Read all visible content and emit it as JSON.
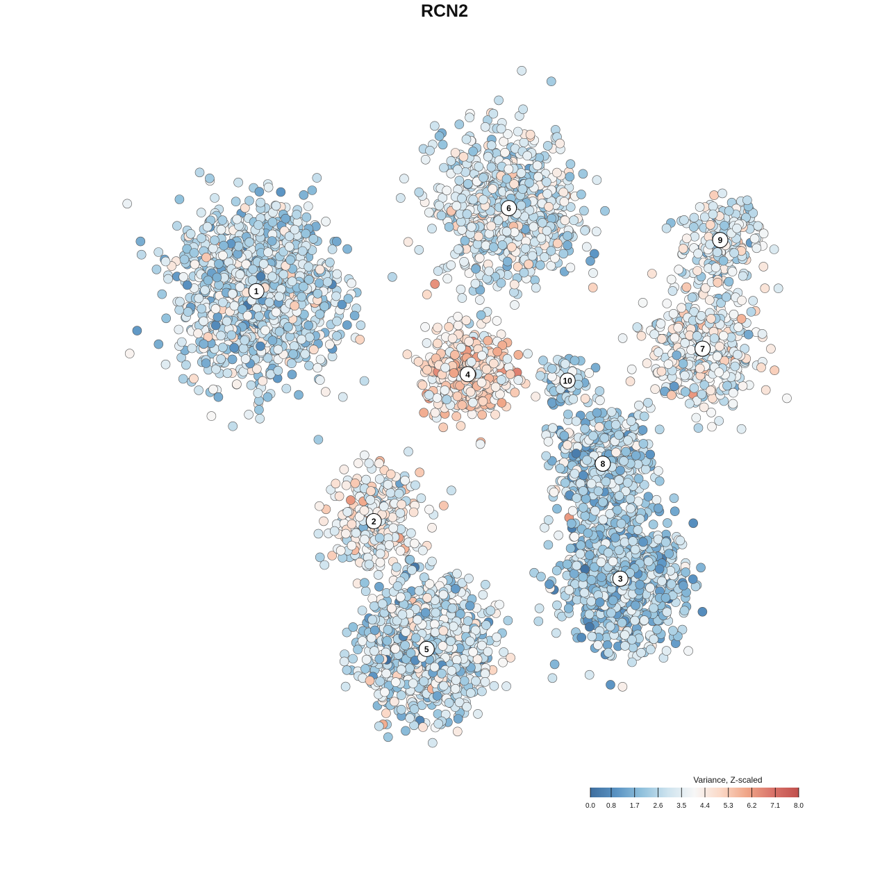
{
  "chart_data": {
    "type": "scatter",
    "title": "RCN2",
    "subtitle": "",
    "xlabel": "",
    "ylabel": "",
    "grid": false,
    "axes_visible": false,
    "color_scale": {
      "title": "Variance, Z-scaled",
      "min": 0.0,
      "max": 8.0,
      "ticks": [
        "0.0",
        "0.8",
        "1.7",
        "2.6",
        "3.5",
        "4.4",
        "5.3",
        "6.2",
        "7.1",
        "8.0"
      ],
      "colors": [
        "#3f6f9f",
        "#5a93c3",
        "#92c2dd",
        "#cfe4ef",
        "#f7f7f7",
        "#fbd9c7",
        "#f0a688",
        "#d9736a",
        "#c0504d"
      ],
      "placement": "bottom-right"
    },
    "clusters": [
      {
        "label": "1",
        "x": 0.2,
        "y": 0.74,
        "mean_value": 2.9,
        "spread": 0.13,
        "n": 1300
      },
      {
        "label": "2",
        "x": 0.4,
        "y": 0.38,
        "mean_value": 3.8,
        "spread": 0.08,
        "n": 300
      },
      {
        "label": "3",
        "x": 0.82,
        "y": 0.29,
        "mean_value": 2.4,
        "spread": 0.1,
        "n": 900
      },
      {
        "label": "4",
        "x": 0.56,
        "y": 0.61,
        "mean_value": 4.6,
        "spread": 0.07,
        "n": 450
      },
      {
        "label": "5",
        "x": 0.49,
        "y": 0.18,
        "mean_value": 3.0,
        "spread": 0.1,
        "n": 1100
      },
      {
        "label": "6",
        "x": 0.63,
        "y": 0.87,
        "mean_value": 3.2,
        "spread": 0.12,
        "n": 700
      },
      {
        "label": "7",
        "x": 0.96,
        "y": 0.65,
        "mean_value": 3.6,
        "spread": 0.09,
        "n": 400
      },
      {
        "label": "8",
        "x": 0.79,
        "y": 0.47,
        "mean_value": 2.5,
        "spread": 0.08,
        "n": 500
      },
      {
        "label": "9",
        "x": 0.99,
        "y": 0.82,
        "mean_value": 3.4,
        "spread": 0.07,
        "n": 200
      },
      {
        "label": "10",
        "x": 0.73,
        "y": 0.6,
        "mean_value": 2.7,
        "spread": 0.04,
        "n": 80
      }
    ],
    "xlim": [
      0,
      1.1
    ],
    "ylim": [
      0,
      1.0
    ]
  }
}
